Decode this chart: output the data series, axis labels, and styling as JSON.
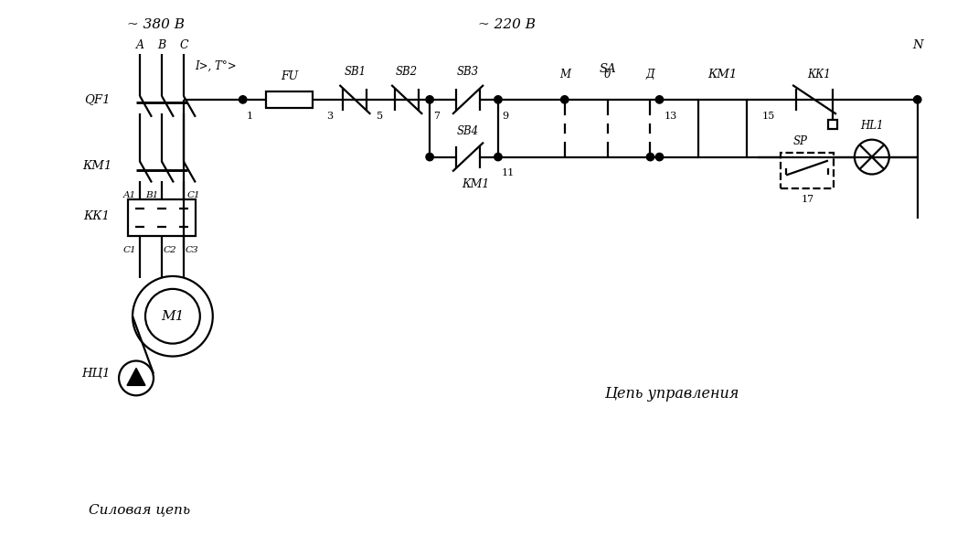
{
  "bg_color": "#ffffff",
  "line_color": "#000000",
  "lw": 1.6,
  "fig_width": 10.47,
  "fig_height": 5.86,
  "labels": {
    "voltage_380": "~ 380 В",
    "voltage_220": "~ 220 В",
    "phase_A": "A",
    "phase_B": "B",
    "phase_C": "C",
    "IT": "I>, T°>",
    "QF1": "QF1",
    "KM1_power": "КМ1",
    "KK1_power": "КК1",
    "FU": "FU",
    "SB1": "SB1",
    "SB2": "SB2",
    "SB3": "SB3",
    "SB4": "SB4",
    "SA": "SA",
    "M_pos": "M",
    "zero_pos": "0",
    "D_pos": "Д",
    "KM1_coil": "КМ1",
    "KK1_ctrl": "КК1",
    "SP": "SP",
    "HL1": "HL1",
    "N": "N",
    "M1": "M1",
    "NCI1": "НЦ1",
    "KM1_contact": "КМ1",
    "silovaya": "Силовая цепь",
    "cep_upravleniya": "Цепь управления",
    "n1": "1",
    "n3": "3",
    "n5": "5",
    "n7": "7",
    "n9": "9",
    "n11": "11",
    "n13": "13",
    "n15": "15",
    "n17": "17",
    "A1": "A1",
    "B1": "B1",
    "C1_top": "C1",
    "C1_bot": "C1",
    "C2": "C2",
    "C3": "C3"
  }
}
